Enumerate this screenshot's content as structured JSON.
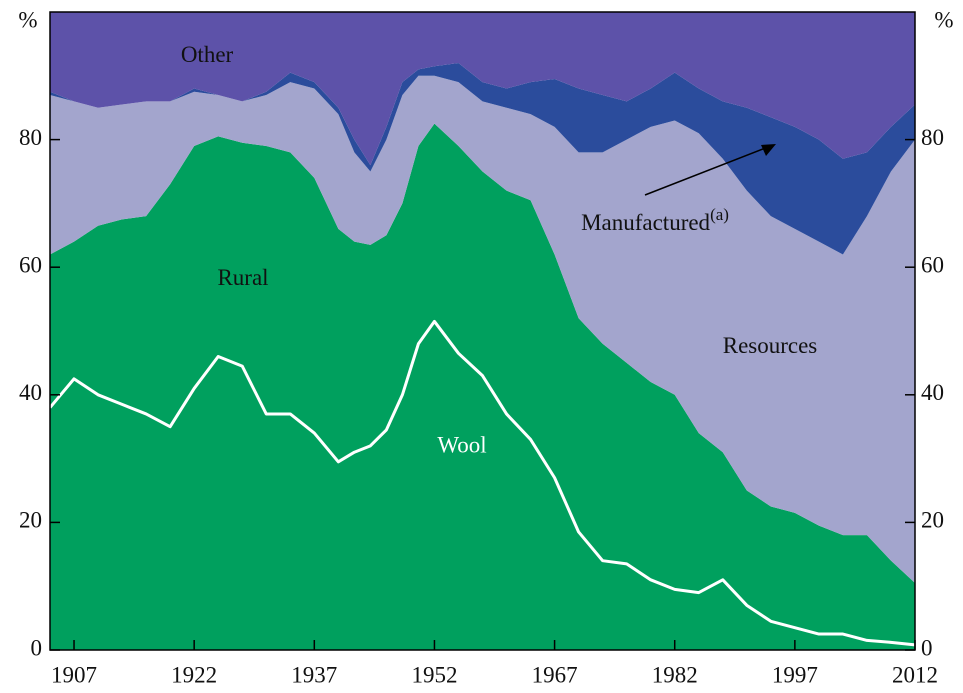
{
  "chart_data": {
    "type": "stacked-area",
    "y_unit_label": "%",
    "x": [
      1904,
      1907,
      1910,
      1913,
      1916,
      1919,
      1922,
      1925,
      1928,
      1931,
      1934,
      1937,
      1940,
      1942,
      1944,
      1946,
      1948,
      1950,
      1952,
      1955,
      1958,
      1961,
      1964,
      1967,
      1970,
      1973,
      1976,
      1979,
      1982,
      1985,
      1988,
      1991,
      1994,
      1997,
      2000,
      2003,
      2006,
      2009,
      2012
    ],
    "series": [
      {
        "name": "Rural",
        "color": "#00a05e",
        "values": [
          62,
          64,
          66.5,
          67.5,
          68,
          73,
          79,
          80.5,
          79.5,
          79,
          78,
          74,
          66,
          64,
          63.5,
          65,
          70,
          79,
          82.5,
          79,
          75,
          72,
          70.5,
          62,
          52,
          48,
          45,
          42,
          40,
          34,
          31,
          25,
          22.5,
          21.5,
          19.5,
          18,
          18,
          14,
          10.5
        ]
      },
      {
        "name": "Resources",
        "color": "#a3a5cd",
        "values": [
          25,
          22,
          18.5,
          18,
          18,
          13,
          8.5,
          6.5,
          6.5,
          8,
          11,
          14,
          18,
          14,
          11.5,
          15,
          17,
          11,
          7.5,
          10,
          11,
          13,
          13.5,
          20,
          26,
          30,
          35,
          40,
          43,
          47,
          46,
          47,
          45.5,
          44.5,
          44.5,
          44,
          50,
          61,
          69.5
        ]
      },
      {
        "name": "Manufactured",
        "name_note": "(a)",
        "color": "#2b4c9c",
        "values": [
          0.5,
          0,
          0,
          0,
          0,
          0,
          0.5,
          0,
          0,
          0.5,
          1.5,
          1,
          1,
          2,
          1,
          2,
          2,
          1,
          1.5,
          3,
          3,
          3,
          5,
          7.5,
          10,
          9,
          6,
          6,
          7.5,
          7,
          9,
          13,
          15.5,
          16,
          16,
          15,
          10,
          7,
          5.5
        ]
      },
      {
        "name": "Other",
        "color": "#5d52a9",
        "values": [
          12.5,
          14,
          15,
          14.5,
          14,
          14,
          12,
          13,
          14,
          12.5,
          9.5,
          11,
          15,
          20,
          24,
          18,
          11,
          9,
          8.5,
          8,
          11,
          12,
          11,
          10.5,
          12,
          13,
          14,
          12,
          9.5,
          12,
          14,
          15,
          16.5,
          18,
          20,
          23,
          22,
          18,
          14.5
        ]
      }
    ],
    "line": {
      "name": "Wool",
      "color": "#ffffff",
      "values": [
        38,
        42.5,
        40,
        38.5,
        37,
        35,
        41,
        46,
        44.5,
        37,
        37,
        34,
        29.5,
        31,
        32,
        34.5,
        40,
        48,
        51.5,
        46.5,
        43,
        37,
        33,
        27,
        18.5,
        14,
        13.5,
        11,
        9.5,
        9,
        11,
        7,
        4.5,
        3.5,
        2.5,
        2.5,
        1.5,
        1.2,
        0.8
      ]
    },
    "xlim": [
      1904,
      2012
    ],
    "xticks": [
      1907,
      1922,
      1937,
      1952,
      1967,
      1982,
      1997,
      2012
    ],
    "ylim": [
      0,
      100
    ],
    "yticks": [
      0,
      20,
      40,
      60,
      80
    ],
    "y2lim": [
      0,
      100
    ],
    "y2ticks": [
      0,
      20,
      40,
      60,
      80
    ]
  }
}
